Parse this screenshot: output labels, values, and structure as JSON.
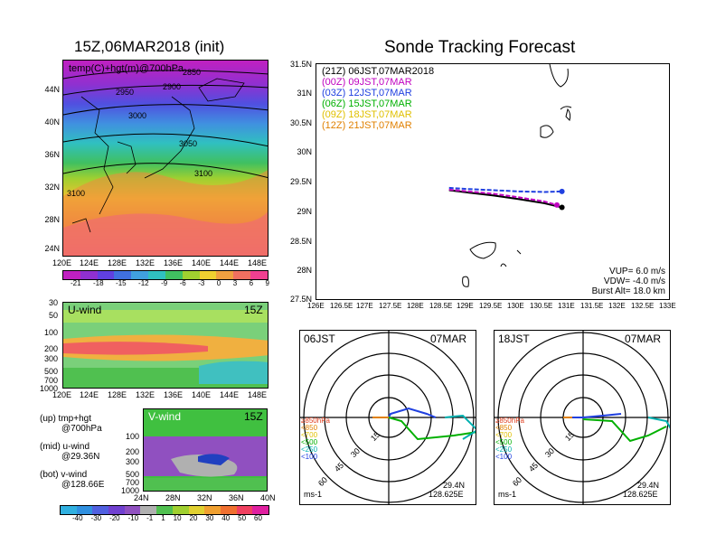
{
  "left": {
    "map_title": "15Z,06MAR2018 (init)",
    "map_label": "temp(C)+hgt(m)@700hPa",
    "contours": [
      "2850",
      "2900",
      "2950",
      "3000",
      "3050",
      "3100",
      "3100"
    ],
    "lat_ticks": [
      "44N",
      "40N",
      "36N",
      "32N",
      "28N",
      "24N"
    ],
    "lon_ticks": [
      "120E",
      "124E",
      "128E",
      "132E",
      "136E",
      "140E",
      "144E",
      "148E"
    ],
    "temp_colorbar": [
      "-21",
      "-18",
      "-15",
      "-12",
      "-9",
      "-6",
      "-3",
      "0",
      "3",
      "6",
      "9"
    ],
    "u_label": "U-wind",
    "u_time": "15Z",
    "p_ticks": [
      "30",
      "50",
      "100",
      "200",
      "300",
      "500",
      "700",
      "1000"
    ],
    "v_label": "V-wind",
    "v_time": "15Z",
    "v_p_ticks": [
      "100",
      "200",
      "300",
      "500",
      "700",
      "1000"
    ],
    "v_lat_ticks": [
      "24N",
      "28N",
      "32N",
      "36N",
      "40N"
    ],
    "wind_colorbar": [
      "-40",
      "-30",
      "-20",
      "-10",
      "-1",
      "1",
      "10",
      "20",
      "30",
      "40",
      "50",
      "60"
    ],
    "notes": {
      "up1": "(up) tmp+hgt",
      "up2": "@700hPa",
      "mid1": "(mid) u-wind",
      "mid2": "@29.36N",
      "bot1": "(bot) v-wind",
      "bot2": "@128.66E"
    }
  },
  "main": {
    "title": "Sonde Tracking Forecast",
    "legend": [
      {
        "text": "(21Z) 06JST,07MAR2018",
        "color": "#000000"
      },
      {
        "text": "(00Z) 09JST,07MAR",
        "color": "#c000c0"
      },
      {
        "text": "(03Z) 12JST,07MAR",
        "color": "#2040e0"
      },
      {
        "text": "(06Z) 15JST,07MAR",
        "color": "#00b000"
      },
      {
        "text": "(09Z) 18JST,07MAR",
        "color": "#e0c000"
      },
      {
        "text": "(12Z) 21JST,07MAR",
        "color": "#e08000"
      }
    ],
    "params": [
      "VUP=  6.0 m/s",
      "VDW= -4.0 m/s",
      "Burst Alt= 18.0 km"
    ]
  },
  "polar": [
    {
      "left_label": "06JST",
      "right_label": "07MAR",
      "lat": "29.4N",
      "lon": "128.625E",
      "unit": "ms-1"
    },
    {
      "left_label": "18JST",
      "right_label": "07MAR",
      "lat": "29.4N",
      "lon": "128.625E",
      "unit": "ms-1"
    }
  ],
  "polar_legend": [
    "≥850hPa",
    "<850",
    "<700",
    "<500",
    "<250",
    "<100"
  ],
  "polar_legend_colors": [
    "#e04020",
    "#e08000",
    "#e0c000",
    "#00b000",
    "#00b0b0",
    "#2040e0"
  ],
  "ring_labels": [
    "15",
    "30",
    "45",
    "60"
  ],
  "chart_data": {
    "type": "line",
    "title": "Sonde Tracking Forecast",
    "x_ticks": [
      "126E",
      "126.5E",
      "127E",
      "127.5E",
      "128E",
      "128.5E",
      "129E",
      "129.5E",
      "130E",
      "130.5E",
      "131E",
      "131.5E",
      "132E",
      "132.5E",
      "133E"
    ],
    "y_ticks": [
      "27.5N",
      "28N",
      "28.5N",
      "29N",
      "29.5N",
      "30N",
      "30.5N",
      "31N",
      "31.5N"
    ],
    "xlim": [
      126,
      133
    ],
    "ylim": [
      27.5,
      31.5
    ],
    "series": [
      {
        "name": "(21Z) 06JST,07MAR2018",
        "color": "#000000",
        "x": [
          128.62,
          129.0,
          129.5,
          130.0,
          130.5,
          130.85
        ],
        "y": [
          29.37,
          29.33,
          29.28,
          29.22,
          29.15,
          29.08
        ]
      },
      {
        "name": "(00Z) 09JST,07MAR",
        "color": "#c000c0",
        "x": [
          128.62,
          129.0,
          129.5,
          130.0,
          130.5,
          130.75
        ],
        "y": [
          29.38,
          29.35,
          29.31,
          29.25,
          29.18,
          29.12
        ]
      },
      {
        "name": "(03Z) 12JST,07MAR",
        "color": "#2040e0",
        "x": [
          128.62,
          129.0,
          129.5,
          130.0,
          130.5,
          130.85
        ],
        "y": [
          29.41,
          29.39,
          29.37,
          29.35,
          29.34,
          29.35
        ]
      },
      {
        "name": "(06Z) 15JST,07MAR",
        "color": "#00b000",
        "x": [],
        "y": []
      },
      {
        "name": "(09Z) 18JST,07MAR",
        "color": "#e0c000",
        "x": [],
        "y": []
      },
      {
        "name": "(12Z) 21JST,07MAR",
        "color": "#e08000",
        "x": [],
        "y": []
      }
    ]
  }
}
